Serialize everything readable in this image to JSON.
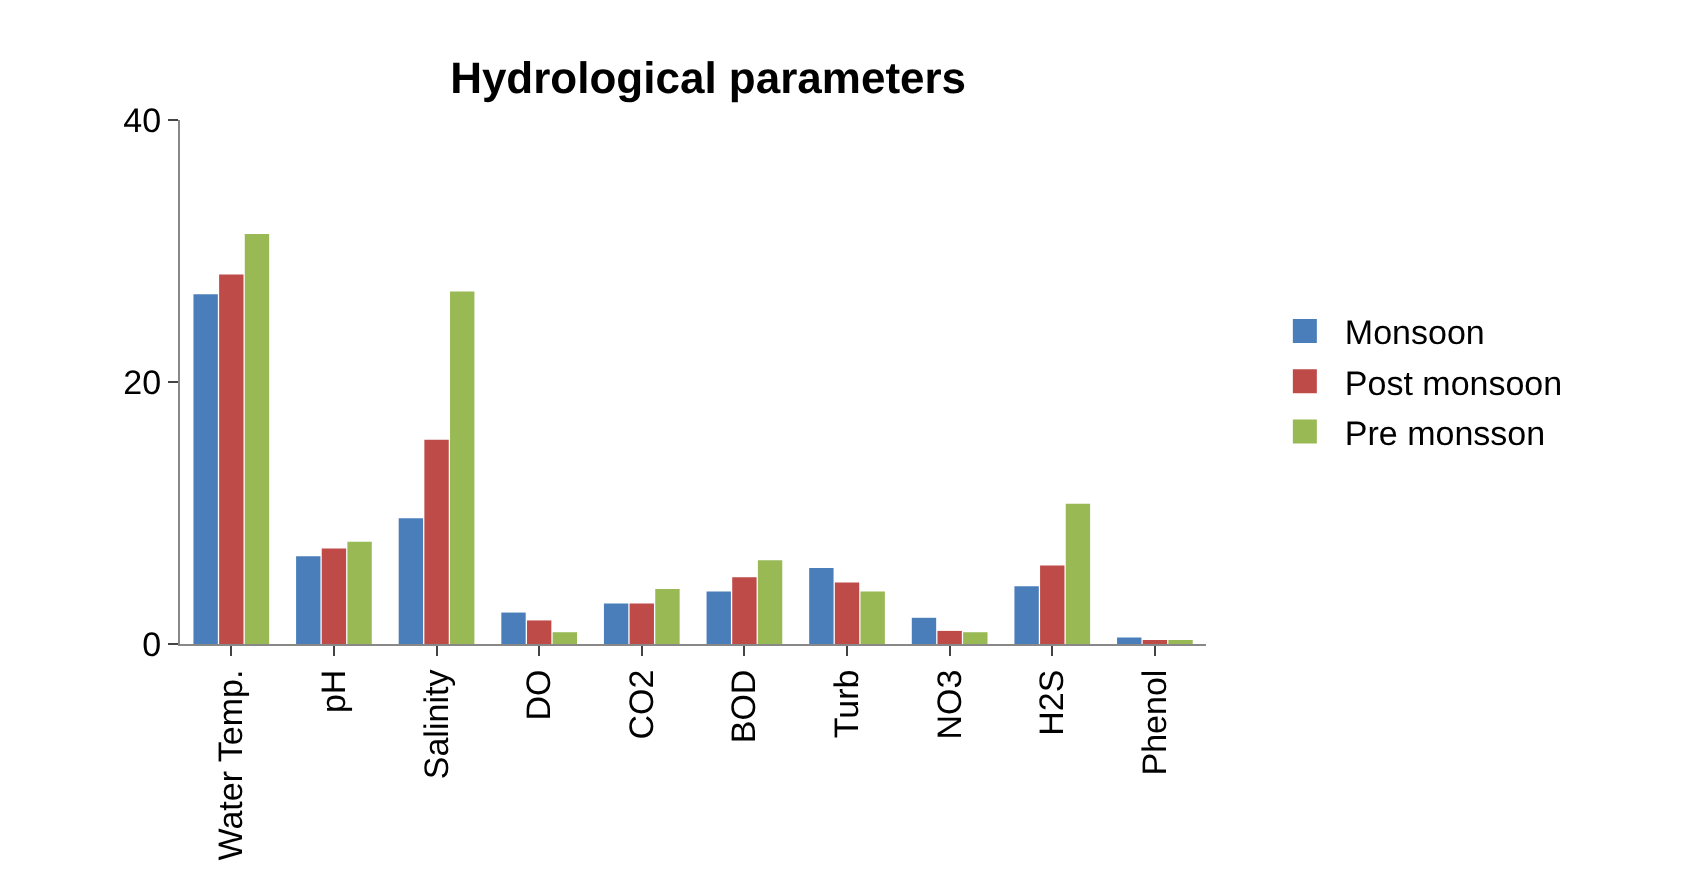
{
  "chart_data": {
    "type": "bar",
    "title": "Hydrological parameters",
    "categories": [
      "Water Temp.",
      "pH",
      "Salinity",
      "DO",
      "CO2",
      "BOD",
      "Turb",
      "NO3",
      "H2S",
      "Phenol"
    ],
    "series": [
      {
        "name": "Monsoon",
        "color": "#4a7ebb",
        "values": [
          26.7,
          6.7,
          9.6,
          2.4,
          3.1,
          4,
          5.8,
          2,
          4.4,
          0.5
        ]
      },
      {
        "name": "Post monsoon",
        "color": "#be4b48",
        "values": [
          28.2,
          7.3,
          15.6,
          1.8,
          3.1,
          5.1,
          4.7,
          1,
          6,
          0.2
        ]
      },
      {
        "name": "Pre monsson",
        "color": "#98b954",
        "values": [
          31.3,
          7.8,
          26.9,
          0.9,
          4.2,
          6.4,
          4,
          0.9,
          10.7,
          0.3
        ]
      }
    ],
    "ylim": [
      0,
      40
    ],
    "yticks": [
      0,
      20,
      40
    ],
    "legend": "right"
  }
}
